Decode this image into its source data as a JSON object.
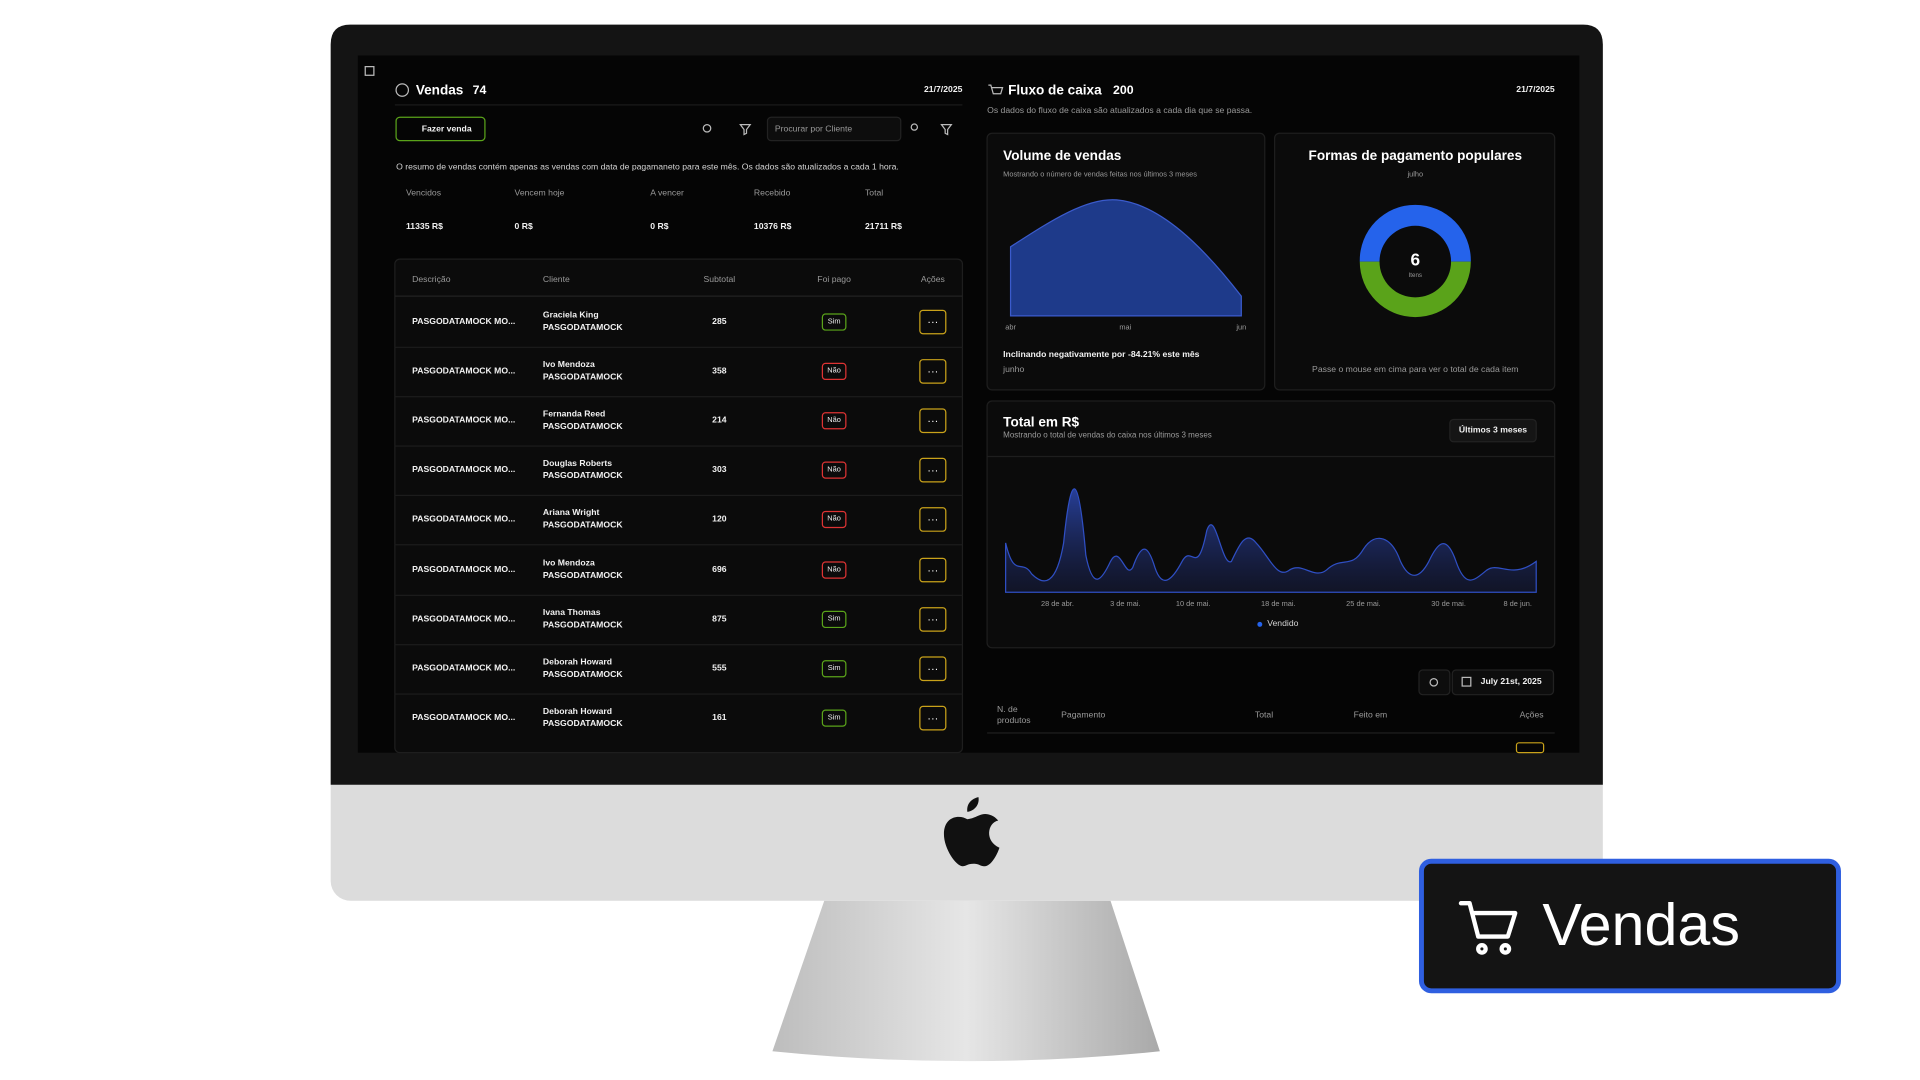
{
  "left": {
    "title": "Vendas",
    "count": "74",
    "date": "21/7/2025",
    "new_button": "Fazer venda",
    "search_placeholder": "Procurar por Cliente",
    "summary_note": "O resumo de vendas contém apenas as vendas com data de pagamaneto para este mês. Os dados são atualizados a cada 1 hora.",
    "summary": {
      "headers": [
        "Vencidos",
        "Vencem hoje",
        "A vencer",
        "Recebido",
        "Total"
      ],
      "values": [
        "11335 R$",
        "0 R$",
        "0 R$",
        "10376 R$",
        "21711 R$"
      ]
    },
    "table": {
      "headers": [
        "Descrição",
        "Cliente",
        "Subtotal",
        "Foi pago",
        "Ações"
      ],
      "rows": [
        {
          "description": "PASGODATAMOCK MO...",
          "client": "Graciela King",
          "client_sub": "PASGODATAMOCK",
          "subtotal": "285",
          "paid": "Sim"
        },
        {
          "description": "PASGODATAMOCK MO...",
          "client": "Ivo Mendoza",
          "client_sub": "PASGODATAMOCK",
          "subtotal": "358",
          "paid": "Não"
        },
        {
          "description": "PASGODATAMOCK MO...",
          "client": "Fernanda Reed",
          "client_sub": "PASGODATAMOCK",
          "subtotal": "214",
          "paid": "Não"
        },
        {
          "description": "PASGODATAMOCK MO...",
          "client": "Douglas Roberts",
          "client_sub": "PASGODATAMOCK",
          "subtotal": "303",
          "paid": "Não"
        },
        {
          "description": "PASGODATAMOCK MO...",
          "client": "Ariana Wright",
          "client_sub": "PASGODATAMOCK",
          "subtotal": "120",
          "paid": "Não"
        },
        {
          "description": "PASGODATAMOCK MO...",
          "client": "Ivo Mendoza",
          "client_sub": "PASGODATAMOCK",
          "subtotal": "696",
          "paid": "Não"
        },
        {
          "description": "PASGODATAMOCK MO...",
          "client": "Ivana Thomas",
          "client_sub": "PASGODATAMOCK",
          "subtotal": "875",
          "paid": "Sim"
        },
        {
          "description": "PASGODATAMOCK MO...",
          "client": "Deborah Howard",
          "client_sub": "PASGODATAMOCK",
          "subtotal": "555",
          "paid": "Sim"
        },
        {
          "description": "PASGODATAMOCK MO...",
          "client": "Deborah Howard",
          "client_sub": "PASGODATAMOCK",
          "subtotal": "161",
          "paid": "Sim"
        }
      ]
    }
  },
  "right": {
    "title": "Fluxo de caixa",
    "count": "200",
    "date": "21/7/2025",
    "subtitle": "Os dados do fluxo de caixa são atualizados a cada dia que se passa.",
    "volume": {
      "title": "Volume de vendas",
      "subtitle": "Mostrando o número de vendas feitas nos últimos 3 meses",
      "x_labels": [
        "abr",
        "mai",
        "jun"
      ],
      "trend": "Inclinando negativamente por -84.21% este mês",
      "trend_sub": "junho"
    },
    "payments": {
      "title": "Formas de pagamento populares",
      "subtitle": "julho",
      "center_value": "6",
      "center_label": "Itens",
      "footer": "Passe o mouse em cima para ver o total de cada item"
    },
    "total": {
      "title": "Total em R$",
      "subtitle": "Mostrando o total de vendas do caixa nos últimos 3 meses",
      "range_button": "Últimos 3 meses",
      "x_labels": [
        "28 de abr.",
        "3 de mai.",
        "10 de mai.",
        "18 de mai.",
        "25 de mai.",
        "30 de mai.",
        "8 de jun."
      ],
      "legend": "Vendido"
    },
    "bottom": {
      "date_button": "July 21st, 2025",
      "headers": [
        "N. de produtos",
        "Pagamento",
        "Total",
        "Feito em",
        "Ações"
      ]
    }
  },
  "badge": "Vendas"
}
